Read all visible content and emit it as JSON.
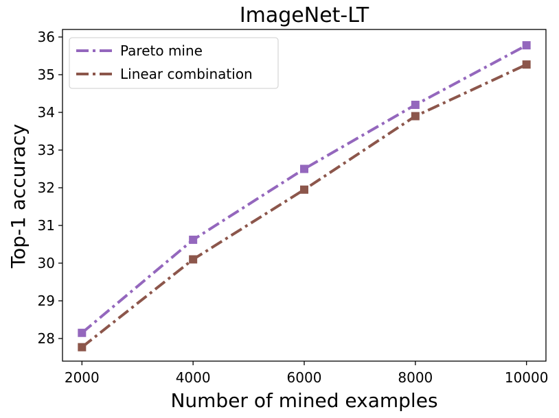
{
  "chart_data": {
    "type": "line",
    "title": "ImageNet-LT",
    "xlabel": "Number of mined examples",
    "ylabel": "Top-1 accuracy",
    "x": [
      2000,
      4000,
      6000,
      8000,
      10000
    ],
    "xticks": [
      2000,
      4000,
      6000,
      8000,
      10000
    ],
    "yticks": [
      28,
      29,
      30,
      31,
      32,
      33,
      34,
      35,
      36
    ],
    "xlim": [
      1650,
      10350
    ],
    "ylim": [
      27.4,
      36.2
    ],
    "grid": false,
    "legend_position": "top-left",
    "series": [
      {
        "name": "Pareto mine",
        "color": "#9467bd",
        "values": [
          28.15,
          30.62,
          32.5,
          34.2,
          35.78
        ]
      },
      {
        "name": "Linear combination",
        "color": "#8c564b",
        "values": [
          27.77,
          30.1,
          31.95,
          33.9,
          35.27
        ]
      }
    ]
  }
}
